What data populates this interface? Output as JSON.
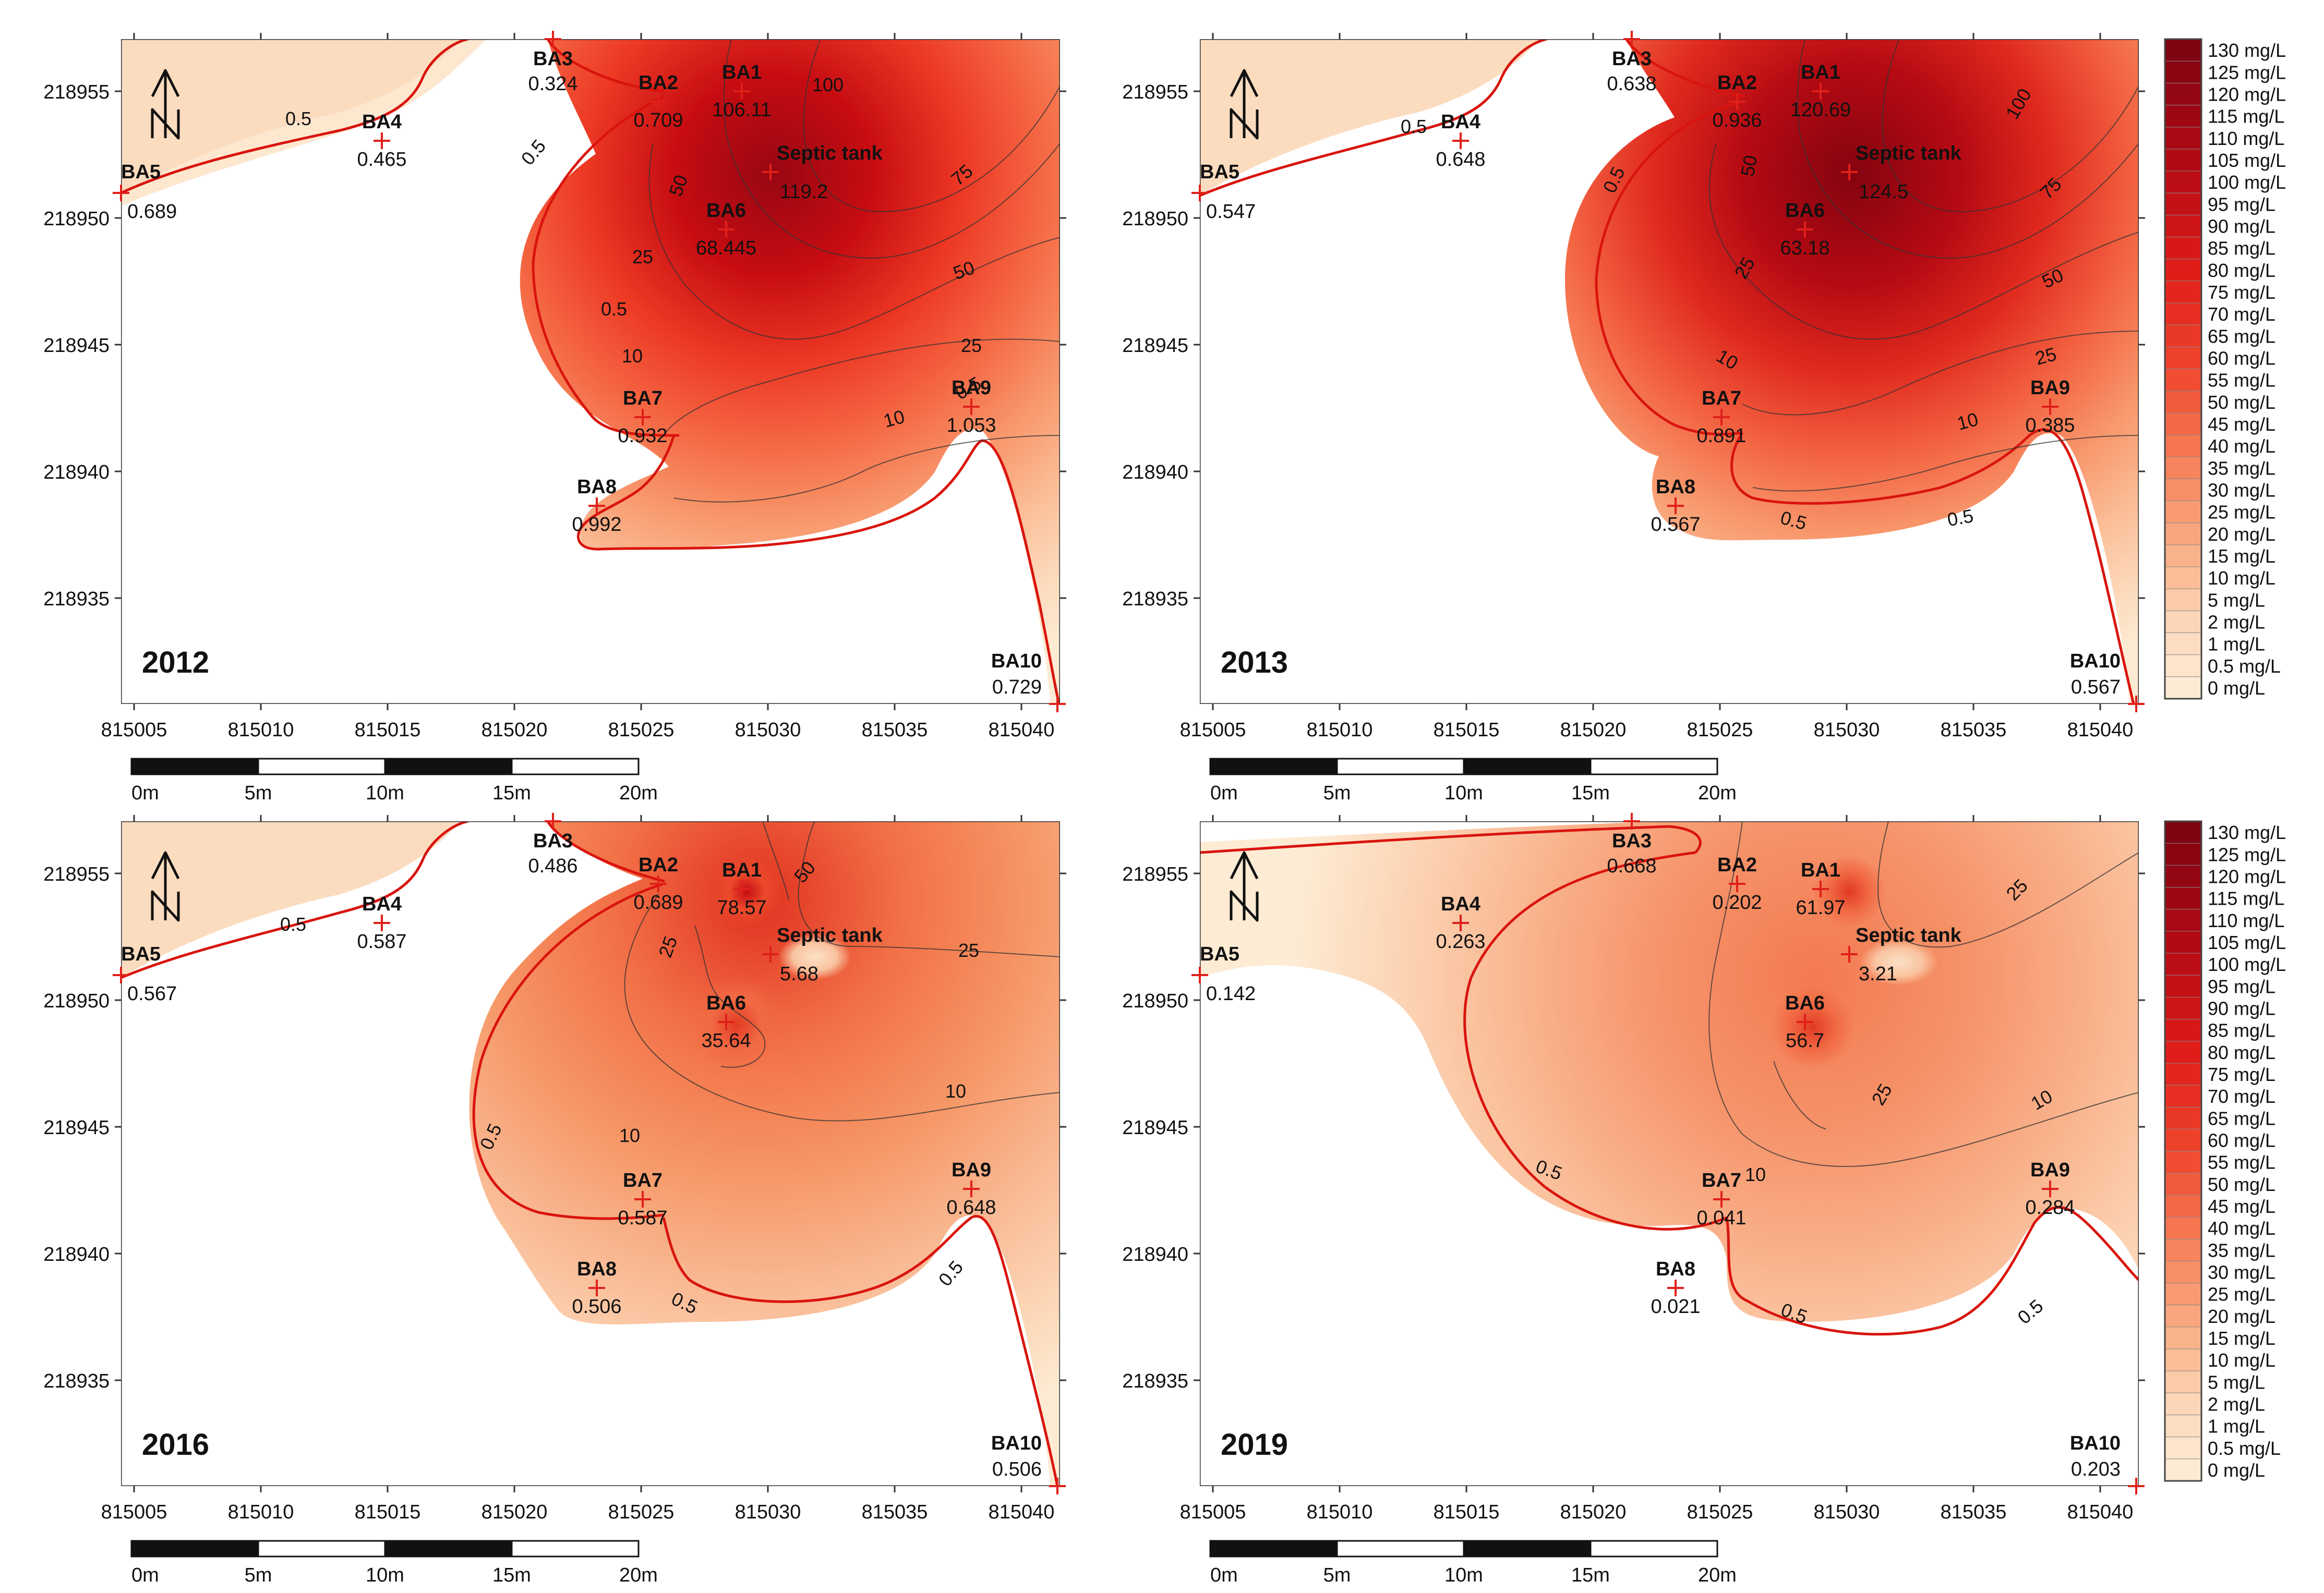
{
  "figure": {
    "panels": [
      {
        "year": "2012",
        "wells": [
          {
            "name": "BA1",
            "value": "106.11"
          },
          {
            "name": "BA2",
            "value": "0.709"
          },
          {
            "name": "BA3",
            "value": "0.324"
          },
          {
            "name": "BA4",
            "value": "0.465"
          },
          {
            "name": "BA5",
            "value": "0.689"
          },
          {
            "name": "BA6",
            "value": "68.445"
          },
          {
            "name": "BA7",
            "value": "0.932"
          },
          {
            "name": "BA8",
            "value": "0.992"
          },
          {
            "name": "BA9",
            "value": "1.053"
          },
          {
            "name": "BA10",
            "value": "0.729"
          },
          {
            "name": "Septic tank",
            "value": "119.2"
          }
        ],
        "contour_labels": [
          "0.5",
          "0.5",
          "0.5",
          "0.5",
          "10",
          "10",
          "25",
          "25",
          "50",
          "50",
          "75",
          "100"
        ]
      },
      {
        "year": "2013",
        "wells": [
          {
            "name": "BA1",
            "value": "120.69"
          },
          {
            "name": "BA2",
            "value": "0.936"
          },
          {
            "name": "BA3",
            "value": "0.638"
          },
          {
            "name": "BA4",
            "value": "0.648"
          },
          {
            "name": "BA5",
            "value": "0.547"
          },
          {
            "name": "BA6",
            "value": "63.18"
          },
          {
            "name": "BA7",
            "value": "0.891"
          },
          {
            "name": "BA8",
            "value": "0.567"
          },
          {
            "name": "BA9",
            "value": "0.385"
          },
          {
            "name": "BA10",
            "value": "0.567"
          },
          {
            "name": "Septic tank",
            "value": "124.5"
          }
        ],
        "contour_labels": [
          "0.5",
          "0.5",
          "0.5",
          "0.5",
          "10",
          "10",
          "25",
          "25",
          "50",
          "50",
          "75",
          "100"
        ]
      },
      {
        "year": "2016",
        "wells": [
          {
            "name": "BA1",
            "value": "78.57"
          },
          {
            "name": "BA2",
            "value": "0.689"
          },
          {
            "name": "BA3",
            "value": "0.486"
          },
          {
            "name": "BA4",
            "value": "0.587"
          },
          {
            "name": "BA5",
            "value": "0.567"
          },
          {
            "name": "BA6",
            "value": "35.64"
          },
          {
            "name": "BA7",
            "value": "0.587"
          },
          {
            "name": "BA8",
            "value": "0.506"
          },
          {
            "name": "BA9",
            "value": "0.648"
          },
          {
            "name": "BA10",
            "value": "0.506"
          },
          {
            "name": "Septic tank",
            "value": "5.68"
          }
        ],
        "contour_labels": [
          "0.5",
          "0.5",
          "0.5",
          "0.5",
          "10",
          "10",
          "25",
          "25",
          "50"
        ]
      },
      {
        "year": "2019",
        "wells": [
          {
            "name": "BA1",
            "value": "61.97"
          },
          {
            "name": "BA2",
            "value": "0.202"
          },
          {
            "name": "BA3",
            "value": "0.668"
          },
          {
            "name": "BA4",
            "value": "0.263"
          },
          {
            "name": "BA5",
            "value": "0.142"
          },
          {
            "name": "BA6",
            "value": "56.7"
          },
          {
            "name": "BA7",
            "value": "0.041"
          },
          {
            "name": "BA8",
            "value": "0.021"
          },
          {
            "name": "BA9",
            "value": "0.284"
          },
          {
            "name": "BA10",
            "value": "0.203"
          },
          {
            "name": "Septic tank",
            "value": "3.21"
          }
        ],
        "contour_labels": [
          "0.5",
          "0.5",
          "0.5",
          "10",
          "10",
          "25",
          "25"
        ]
      }
    ],
    "x_ticks": [
      "815005",
      "815010",
      "815015",
      "815020",
      "815025",
      "815030",
      "815035",
      "815040"
    ],
    "y_ticks": [
      "218955",
      "218950",
      "218945",
      "218940",
      "218935"
    ],
    "scalebar_labels": [
      "0m",
      "5m",
      "10m",
      "15m",
      "20m"
    ],
    "legend": [
      "130 mg/L",
      "125 mg/L",
      "120 mg/L",
      "115 mg/L",
      "110 mg/L",
      "105 mg/L",
      "100 mg/L",
      "95 mg/L",
      "90 mg/L",
      "85 mg/L",
      "80 mg/L",
      "75 mg/L",
      "70 mg/L",
      "65 mg/L",
      "60 mg/L",
      "55 mg/L",
      "50 mg/L",
      "45 mg/L",
      "40 mg/L",
      "35 mg/L",
      "30 mg/L",
      "25 mg/L",
      "20 mg/L",
      "15 mg/L",
      "10 mg/L",
      "5 mg/L",
      "2 mg/L",
      "1 mg/L",
      "0.5 mg/L",
      "0 mg/L"
    ],
    "colors": {
      "low": "#fdebd1",
      "high": "#7f0412",
      "well_marker": "#e0201a",
      "contour_main": "#d9140e"
    }
  }
}
